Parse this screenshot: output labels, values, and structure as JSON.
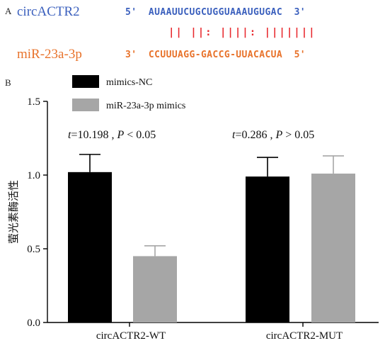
{
  "panel_a": {
    "label": "A",
    "circ_name": "circACTR2",
    "mir_name": "miR-23a-3p",
    "circ_seq": "5'  AUAAUUCUGCUGGUAAAUGUGAC  3'",
    "pairing": "|| ||: ||||: |||||||",
    "mir_seq": "3'  CCUUUAGG-GACCG-UUACACUA  5'",
    "circ_color": "#3a5fbd",
    "mir_color": "#e8722a"
  },
  "panel_b": {
    "label": "B"
  },
  "chart_data": {
    "type": "bar",
    "categories": [
      "circACTR2-WT",
      "circACTR2-MUT"
    ],
    "series": [
      {
        "name": "mimics-NC",
        "values": [
          1.02,
          0.99
        ],
        "errors": [
          0.12,
          0.13
        ],
        "color": "#000000"
      },
      {
        "name": "miR-23a-3p mimics",
        "values": [
          0.45,
          1.01
        ],
        "errors": [
          0.07,
          0.12
        ],
        "color": "#a6a6a6"
      }
    ],
    "ylabel": "萤光素酶活性",
    "ylim": [
      0,
      1.5
    ],
    "yticks": [
      0.0,
      0.5,
      1.0,
      1.5
    ],
    "ytick_labels": [
      "0.0",
      "0.5",
      "1.0",
      "1.5"
    ],
    "annotations": [
      {
        "category": "circACTR2-WT",
        "t_label": "t",
        "t_value": "=10.198 , ",
        "p_label": "P",
        "p_text": " < 0.05"
      },
      {
        "category": "circACTR2-MUT",
        "t_label": "t",
        "t_value": "=0.286 , ",
        "p_label": "P",
        "p_text": " > 0.05"
      }
    ],
    "legend_position": "top-left",
    "grid": false
  }
}
